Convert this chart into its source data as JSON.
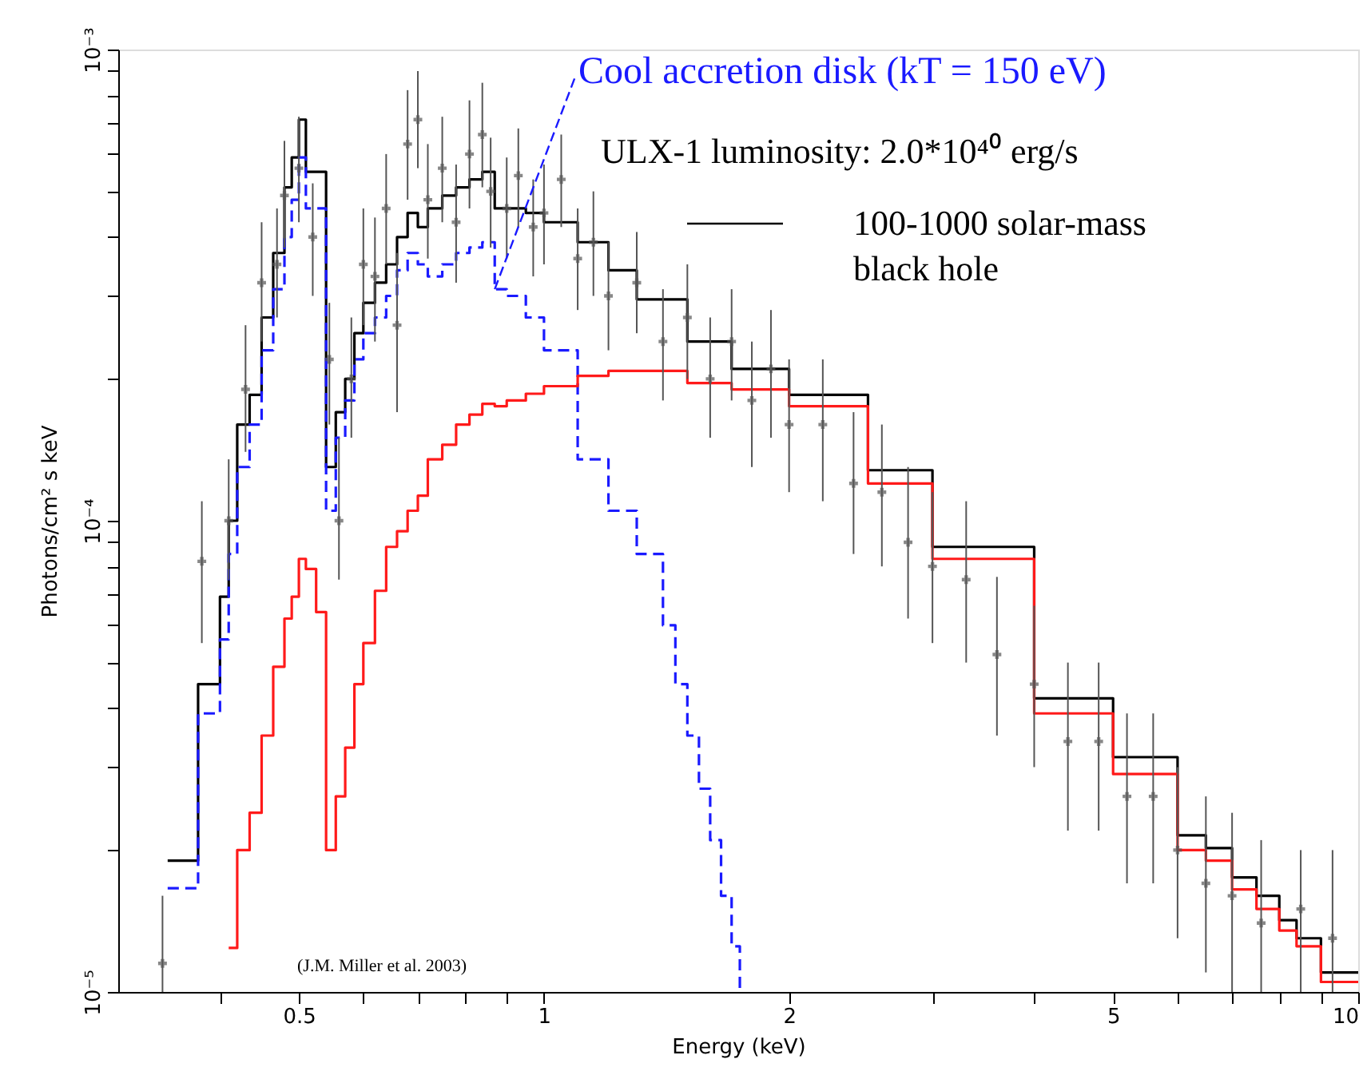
{
  "chart_data": {
    "type": "step",
    "xlabel": "Energy (keV)",
    "ylabel": "Photons/cm² s keV",
    "log": "xy",
    "grid": false,
    "xlim": [
      0.3,
      10
    ],
    "ylim": [
      1e-05,
      0.001
    ],
    "xticks": [
      {
        "value": 0.4,
        "label": null
      },
      {
        "value": 0.5,
        "label": "0.5"
      },
      {
        "value": 0.6,
        "label": null
      },
      {
        "value": 0.7,
        "label": null
      },
      {
        "value": 0.8,
        "label": null
      },
      {
        "value": 0.9,
        "label": null
      },
      1,
      2,
      {
        "value": 3,
        "label": null
      },
      {
        "value": 4,
        "label": null
      },
      5,
      {
        "value": 6,
        "label": null
      },
      {
        "value": 7,
        "label": null
      },
      {
        "value": 8,
        "label": null
      },
      {
        "value": 9,
        "label": null
      },
      10
    ],
    "yticks": [
      {
        "value": 1e-05,
        "label": "10⁻⁵"
      },
      {
        "value": 2e-05,
        "label": null
      },
      {
        "value": 3e-05,
        "label": null
      },
      {
        "value": 4e-05,
        "label": null
      },
      {
        "value": 5e-05,
        "label": null
      },
      {
        "value": 6e-05,
        "label": null
      },
      {
        "value": 7e-05,
        "label": null
      },
      {
        "value": 8e-05,
        "label": null
      },
      {
        "value": 9e-05,
        "label": null
      },
      {
        "value": 0.0001,
        "label": "10⁻⁴"
      },
      {
        "value": 0.0002,
        "label": null
      },
      {
        "value": 0.0003,
        "label": null
      },
      {
        "value": 0.0004,
        "label": null
      },
      {
        "value": 0.0005,
        "label": null
      },
      {
        "value": 0.0006,
        "label": null
      },
      {
        "value": 0.0007,
        "label": null
      },
      {
        "value": 0.0008,
        "label": null
      },
      {
        "value": 0.0009,
        "label": null
      },
      {
        "value": 0.001,
        "label": "10⁻³"
      }
    ],
    "series": [
      {
        "type": "scatter",
        "color": "#555555",
        "marker": "cross",
        "x": [
          0.34,
          0.38,
          0.41,
          0.43,
          0.45,
          0.47,
          0.48,
          0.5,
          0.52,
          0.545,
          0.56,
          0.58,
          0.6,
          0.62,
          0.64,
          0.66,
          0.68,
          0.7,
          0.72,
          0.75,
          0.78,
          0.81,
          0.84,
          0.86,
          0.9,
          0.93,
          0.97,
          1.0,
          1.05,
          1.1,
          1.15,
          1.2,
          1.3,
          1.4,
          1.5,
          1.6,
          1.7,
          1.8,
          1.9,
          2.0,
          2.2,
          2.4,
          2.6,
          2.8,
          3.0,
          3.3,
          3.6,
          4.0,
          4.4,
          4.8,
          5.2,
          5.6,
          6.0,
          6.5,
          7.0,
          7.6,
          8.5,
          9.3
        ],
        "values": [
          1.15e-05,
          8.2e-05,
          0.0001,
          0.00019,
          0.00032,
          0.00035,
          0.00049,
          0.00056,
          0.0004,
          0.00022,
          0.0001,
          0.0002,
          0.00035,
          0.00033,
          0.00046,
          0.00026,
          0.00063,
          0.00071,
          0.00048,
          0.00056,
          0.00043,
          0.0006,
          0.00066,
          0.0005,
          0.00046,
          0.00054,
          0.00042,
          0.00045,
          0.00053,
          0.00036,
          0.00039,
          0.0003,
          0.00032,
          0.00024,
          0.00027,
          0.0002,
          0.00024,
          0.00018,
          0.00021,
          0.00016,
          0.00016,
          0.00012,
          0.000115,
          9e-05,
          8e-05,
          7.5e-05,
          5.2e-05,
          4.5e-05,
          3.4e-05,
          3.4e-05,
          2.6e-05,
          2.6e-05,
          2e-05,
          1.7e-05,
          1.6e-05,
          1.4e-05,
          1.5e-05,
          1.3e-05
        ],
        "errors": [
          [
            1e-05,
            1.6e-05
          ],
          [
            5.5e-05,
            0.00011
          ],
          [
            7.5e-05,
            0.000135
          ],
          [
            0.00014,
            0.00026
          ],
          [
            0.00024,
            0.00043
          ],
          [
            0.00027,
            0.00046
          ],
          [
            0.00038,
            0.00064
          ],
          [
            0.00043,
            0.00072
          ],
          [
            0.0003,
            0.00052
          ],
          [
            0.00016,
            0.00029
          ],
          [
            7.5e-05,
            0.00015
          ],
          [
            0.00015,
            0.00027
          ],
          [
            0.00026,
            0.00046
          ],
          [
            0.00024,
            0.00044
          ],
          [
            0.00035,
            0.0006
          ],
          [
            0.00017,
            0.00037
          ],
          [
            0.00048,
            0.00082
          ],
          [
            0.00056,
            0.0009
          ],
          [
            0.00036,
            0.00063
          ],
          [
            0.00043,
            0.00072
          ],
          [
            0.00032,
            0.00057
          ],
          [
            0.00046,
            0.00078
          ],
          [
            0.00051,
            0.00085
          ],
          [
            0.00038,
            0.00065
          ],
          [
            0.00036,
            0.00059
          ],
          [
            0.00042,
            0.00068
          ],
          [
            0.00033,
            0.00053
          ],
          [
            0.00035,
            0.00057
          ],
          [
            0.00042,
            0.00066
          ],
          [
            0.00028,
            0.00046
          ],
          [
            0.0003,
            0.0005
          ],
          [
            0.00023,
            0.00039
          ],
          [
            0.00025,
            0.00041
          ],
          [
            0.00018,
            0.00031
          ],
          [
            0.0002,
            0.00035
          ],
          [
            0.00015,
            0.00027
          ],
          [
            0.00018,
            0.00031
          ],
          [
            0.00013,
            0.00024
          ],
          [
            0.00015,
            0.00028
          ],
          [
            0.000115,
            0.00022
          ],
          [
            0.00011,
            0.00022
          ],
          [
            8.5e-05,
            0.00017
          ],
          [
            8e-05,
            0.00016
          ],
          [
            6.2e-05,
            0.00013
          ],
          [
            5.5e-05,
            0.000115
          ],
          [
            5e-05,
            0.00011
          ],
          [
            3.5e-05,
            7.6e-05
          ],
          [
            3e-05,
            6.6e-05
          ],
          [
            2.2e-05,
            5e-05
          ],
          [
            2.2e-05,
            5e-05
          ],
          [
            1.7e-05,
            3.9e-05
          ],
          [
            1.7e-05,
            3.9e-05
          ],
          [
            1.3e-05,
            3e-05
          ],
          [
            1.1e-05,
            2.6e-05
          ],
          [
            1e-05,
            2.4e-05
          ],
          [
            1e-05,
            2.1e-05
          ],
          [
            1e-05,
            2e-05
          ],
          [
            1e-05,
            2e-05
          ]
        ]
      },
      {
        "color": "#000000",
        "line_style": "solid",
        "x": [
          0.345,
          0.376,
          0.4,
          0.41,
          0.42,
          0.435,
          0.45,
          0.465,
          0.48,
          0.49,
          0.5,
          0.51,
          0.525,
          0.54,
          0.555,
          0.57,
          0.585,
          0.6,
          0.62,
          0.64,
          0.66,
          0.68,
          0.7,
          0.72,
          0.75,
          0.78,
          0.81,
          0.84,
          0.87,
          0.9,
          0.95,
          1.0,
          1.1,
          1.2,
          1.3,
          1.5,
          1.7,
          2.0,
          2.5,
          3.0,
          4.0,
          5.0,
          6.0,
          6.5,
          7.0,
          7.5,
          8.0,
          8.4,
          9.0,
          10.0
        ],
        "values": [
          1.9e-05,
          4.5e-05,
          6.9e-05,
          0.0001,
          0.00016,
          0.000185,
          0.00027,
          0.00037,
          0.00051,
          0.00059,
          0.00071,
          0.00055,
          0.00055,
          0.00013,
          0.00017,
          0.0002,
          0.00025,
          0.00029,
          0.00032,
          0.00035,
          0.0004,
          0.00045,
          0.00042,
          0.00046,
          0.00049,
          0.00051,
          0.00053,
          0.00055,
          0.00046,
          0.00046,
          0.00045,
          0.00043,
          0.00039,
          0.00034,
          0.000295,
          0.00024,
          0.00021,
          0.000185,
          0.000128,
          8.8e-05,
          4.2e-05,
          3.15e-05,
          2.15e-05,
          2.02e-05,
          1.75e-05,
          1.6e-05,
          1.42e-05,
          1.3e-05,
          1.1e-05,
          1.1e-05
        ]
      },
      {
        "color": "#1a1aff",
        "line_style": "dashed",
        "x": [
          0.345,
          0.376,
          0.4,
          0.41,
          0.42,
          0.435,
          0.45,
          0.465,
          0.48,
          0.49,
          0.5,
          0.51,
          0.525,
          0.54,
          0.555,
          0.57,
          0.585,
          0.6,
          0.62,
          0.64,
          0.66,
          0.68,
          0.7,
          0.72,
          0.75,
          0.78,
          0.81,
          0.84,
          0.87,
          0.9,
          0.95,
          1.0,
          1.1,
          1.2,
          1.3,
          1.4,
          1.45,
          1.5,
          1.55,
          1.6,
          1.65,
          1.7,
          1.74
        ],
        "values": [
          1.66e-05,
          3.9e-05,
          5.6e-05,
          8.5e-05,
          0.00013,
          0.00016,
          0.00023,
          0.00031,
          0.0004,
          0.00048,
          0.00059,
          0.00046,
          0.00046,
          0.000105,
          0.00015,
          0.00018,
          0.00022,
          0.00025,
          0.00027,
          0.0003,
          0.00034,
          0.00037,
          0.00035,
          0.00033,
          0.00035,
          0.00037,
          0.00038,
          0.00039,
          0.00031,
          0.0003,
          0.00027,
          0.00023,
          0.000135,
          0.000105,
          8.5e-05,
          6e-05,
          4.5e-05,
          3.5e-05,
          2.7e-05,
          2.1e-05,
          1.6e-05,
          1.25e-05,
          1e-05
        ]
      },
      {
        "color": "#ff1a1a",
        "line_style": "solid",
        "x": [
          0.41,
          0.42,
          0.435,
          0.45,
          0.465,
          0.48,
          0.49,
          0.5,
          0.51,
          0.525,
          0.54,
          0.555,
          0.57,
          0.585,
          0.6,
          0.62,
          0.64,
          0.66,
          0.68,
          0.7,
          0.72,
          0.75,
          0.78,
          0.81,
          0.84,
          0.87,
          0.9,
          0.95,
          1.0,
          1.1,
          1.2,
          1.3,
          1.5,
          1.7,
          2.0,
          2.5,
          3.0,
          4.0,
          5.0,
          6.0,
          6.5,
          7.0,
          7.5,
          8.0,
          8.4,
          9.0,
          10.0
        ],
        "values": [
          1.24e-05,
          2e-05,
          2.4e-05,
          3.5e-05,
          4.9e-05,
          6.2e-05,
          6.9e-05,
          8.3e-05,
          7.9e-05,
          6.4e-05,
          2e-05,
          2.6e-05,
          3.3e-05,
          4.5e-05,
          5.5e-05,
          7.1e-05,
          8.8e-05,
          9.5e-05,
          0.000105,
          0.000113,
          0.000135,
          0.000145,
          0.00016,
          0.000168,
          0.000177,
          0.000175,
          0.00018,
          0.000186,
          0.000193,
          0.000203,
          0.000208,
          0.000208,
          0.000196,
          0.00019,
          0.000175,
          0.00012,
          8.3e-05,
          3.9e-05,
          2.9e-05,
          2e-05,
          1.9e-05,
          1.65e-05,
          1.5e-05,
          1.35e-05,
          1.25e-05,
          1.05e-05,
          1.05e-05
        ]
      }
    ],
    "annotations": [
      {
        "text": "Cool accretion disk    (kT = 150 eV)",
        "x": 0.87,
        "y": 0.00031
      },
      "ULX-1 luminosity: 2.0*10⁴⁰ erg/s",
      "100-1000 solar-mass\nblack hole",
      "(J.M. Miller et al. 2003)"
    ]
  }
}
